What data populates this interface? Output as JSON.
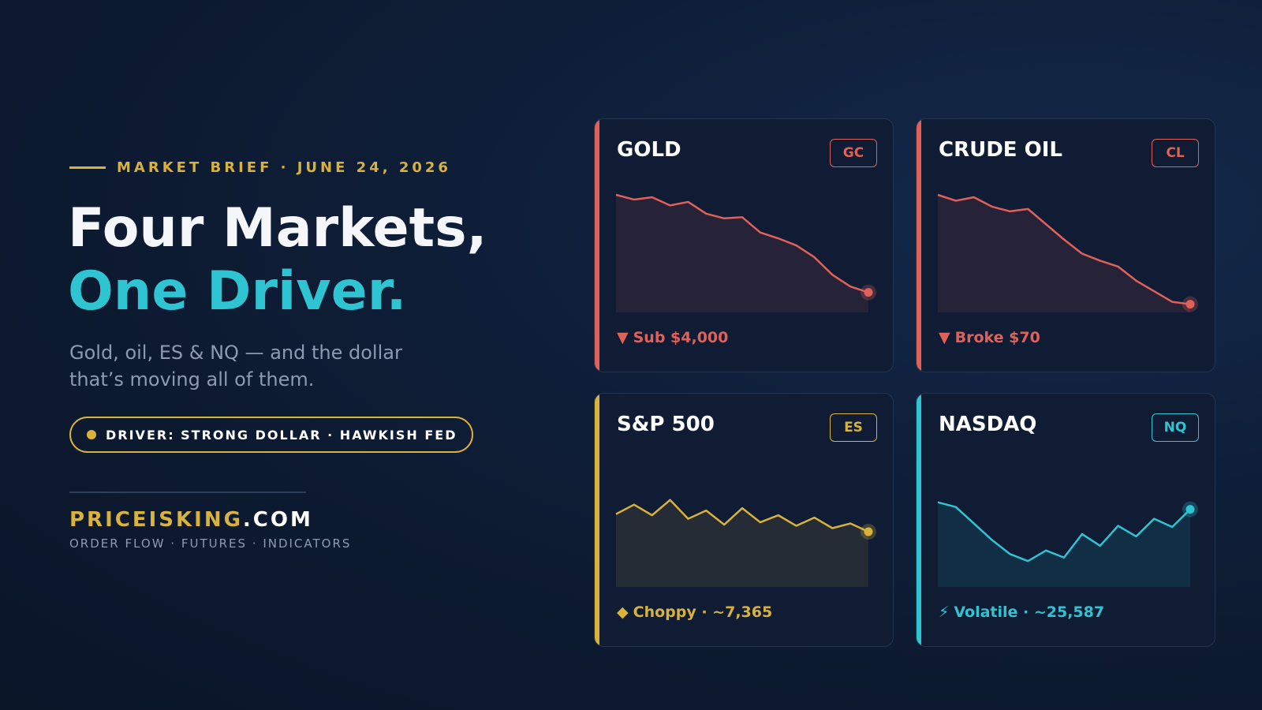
{
  "brief": {
    "eyebrow": "MARKET BRIEF · JUNE 24, 2026",
    "headline_line1": "Four Markets,",
    "headline_line2": "One Driver.",
    "subtitle_line1": "Gold, oil, ES & NQ — and the dollar",
    "subtitle_line2": "that’s moving all of them.",
    "driver_pill": "DRIVER: STRONG DOLLAR · HAWKISH FED",
    "brand_part1": "PRICEISKING",
    "brand_part2": ".COM",
    "tagline": "ORDER FLOW · FUTURES · INDICATORS"
  },
  "colors": {
    "gold_accent": "#d9b23c",
    "cyan_accent": "#2fc4d2",
    "red_accent": "#e0605a",
    "background": "#0e1d36",
    "card_background": "#0f1c34"
  },
  "cards": [
    {
      "name": "GOLD",
      "ticker": "GC",
      "color": "#e0605a",
      "trend": "down",
      "footer_symbol": "▼",
      "footer": "Sub $4,000",
      "sparkline": [
        100,
        96,
        98,
        91,
        94,
        84,
        80,
        81,
        68,
        63,
        57,
        47,
        32,
        22,
        17
      ]
    },
    {
      "name": "CRUDE OIL",
      "ticker": "CL",
      "color": "#e0605a",
      "trend": "down",
      "footer_symbol": "▼",
      "footer": "Broke $70",
      "sparkline": [
        100,
        95,
        98,
        90,
        86,
        88,
        75,
        62,
        50,
        44,
        39,
        27,
        18,
        9,
        7
      ]
    },
    {
      "name": "S&P 500",
      "ticker": "ES",
      "color": "#d9b23c",
      "trend": "choppy",
      "footer_symbol": "◆",
      "footer": "Choppy · ~7,365",
      "sparkline": [
        62,
        70,
        61,
        74,
        58,
        65,
        53,
        67,
        55,
        61,
        52,
        59,
        50,
        54,
        47
      ]
    },
    {
      "name": "NASDAQ",
      "ticker": "NQ",
      "color": "#2fc4d2",
      "trend": "volatile",
      "footer_symbol": "⚡",
      "footer": "Volatile · ~25,587",
      "sparkline": [
        72,
        68,
        54,
        40,
        28,
        22,
        31,
        25,
        45,
        35,
        52,
        43,
        58,
        51,
        66
      ]
    }
  ]
}
